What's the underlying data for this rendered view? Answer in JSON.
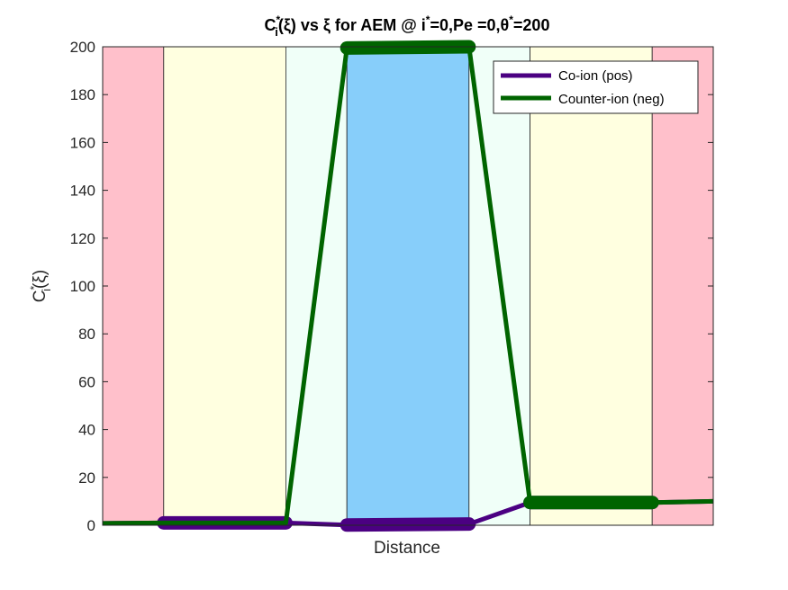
{
  "chart_data": {
    "type": "line",
    "title": {
      "prefix": "C",
      "sub": "i",
      "sup": "*",
      "rest": "(ξ) vs ξ for AEM @ i",
      "sup2": "*",
      "rest2": "=0,Pe =0,θ",
      "sup3": "*",
      "rest3": "=200"
    },
    "xlabel": "Distance",
    "ylabel": {
      "main": "C",
      "sub": "i",
      "sup": "*",
      "rest": "(ξ)"
    },
    "xlim": [
      0,
      10
    ],
    "ylim": [
      0,
      200
    ],
    "yticks": [
      0,
      20,
      40,
      60,
      80,
      100,
      120,
      140,
      160,
      180,
      200
    ],
    "regions": [
      {
        "x0": 0,
        "x1": 1,
        "color": "#ffc0cb"
      },
      {
        "x0": 1,
        "x1": 3,
        "color": "#ffffe0"
      },
      {
        "x0": 3,
        "x1": 4,
        "color": "#f0fff8"
      },
      {
        "x0": 4,
        "x1": 6,
        "color": "#87cefa"
      },
      {
        "x0": 6,
        "x1": 7,
        "color": "#f0fff8"
      },
      {
        "x0": 7,
        "x1": 9,
        "color": "#ffffe0"
      },
      {
        "x0": 9,
        "x1": 10,
        "color": "#ffc0cb"
      }
    ],
    "series": [
      {
        "name": "Co-ion (pos)",
        "color": "#4b0082",
        "x": [
          0,
          1,
          3,
          4,
          6,
          7,
          9,
          10
        ],
        "y": [
          0.8,
          1.0,
          1.0,
          0.1,
          0.5,
          9.5,
          9.5,
          10
        ],
        "marked_segments": [
          [
            1,
            3
          ],
          [
            4,
            6
          ],
          [
            7,
            9
          ]
        ]
      },
      {
        "name": "Counter-ion (neg)",
        "color": "#006400",
        "x": [
          0,
          1,
          3,
          4,
          6,
          7,
          9,
          10
        ],
        "y": [
          0.8,
          1.0,
          1.0,
          199.5,
          200,
          9.5,
          9.5,
          10
        ],
        "marked_segments": [
          [
            4,
            6
          ],
          [
            7,
            9
          ]
        ]
      }
    ],
    "legend": "top-right",
    "grid": false
  }
}
